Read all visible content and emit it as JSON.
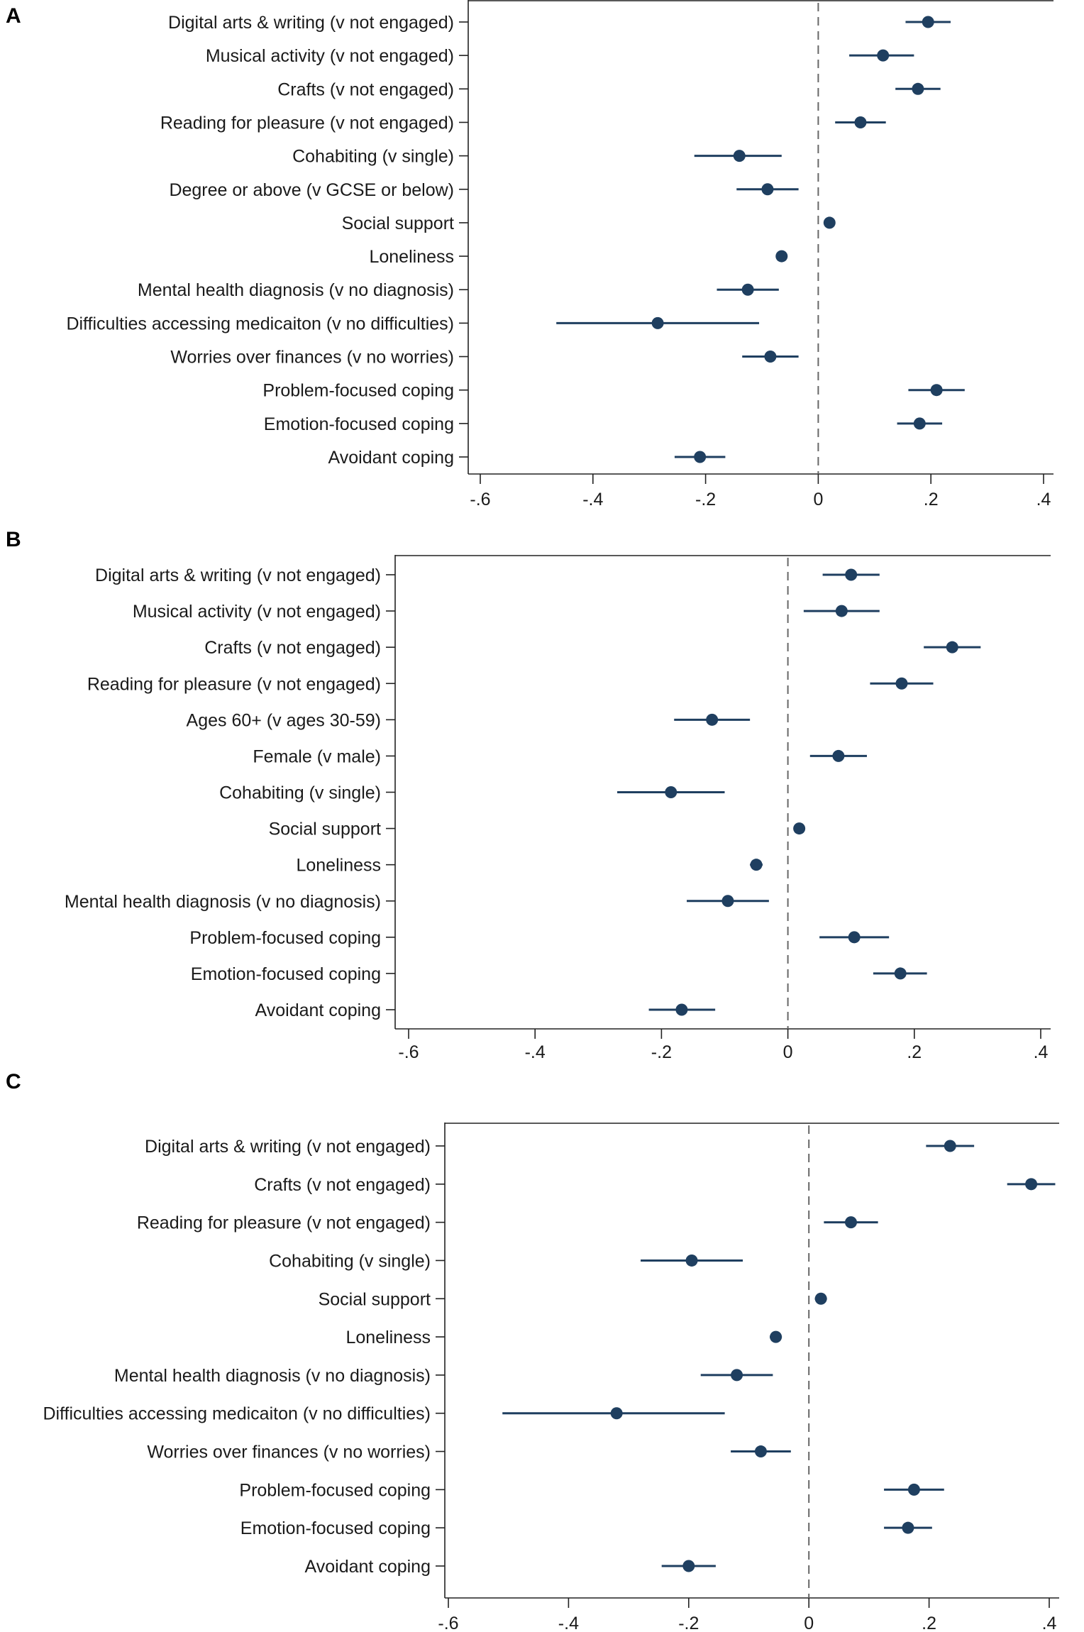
{
  "colors": {
    "marker": "#1f3f60",
    "axis": "#222222",
    "zero_line": "#666666"
  },
  "chart_data": [
    {
      "type": "scatter",
      "panel": "A",
      "xticks": [
        -0.6,
        -0.4,
        -0.2,
        0,
        0.2,
        0.4
      ],
      "xtick_labels": [
        "-.6",
        "-.4",
        "-.2",
        "0",
        ".2",
        ".4"
      ],
      "xlim": [
        -0.6,
        0.4
      ],
      "reference_line": 0,
      "categories": [
        "Digital arts & writing (v not engaged)",
        "Musical activity (v not engaged)",
        "Crafts (v not engaged)",
        "Reading for pleasure (v not engaged)",
        "Cohabiting (v single)",
        "Degree or above (v GCSE or below)",
        "Social support",
        "Loneliness",
        "Mental health diagnosis (v no diagnosis)",
        "Difficulties accessing medicaiton (v no difficulties)",
        "Worries over finances (v no worries)",
        "Problem-focused coping",
        "Emotion-focused coping",
        "Avoidant coping"
      ],
      "estimates": [
        0.195,
        0.115,
        0.177,
        0.075,
        -0.14,
        -0.09,
        0.02,
        -0.065,
        -0.125,
        -0.285,
        -0.085,
        0.21,
        0.18,
        -0.21
      ],
      "ci_low": [
        0.155,
        0.055,
        0.137,
        0.03,
        -0.22,
        -0.145,
        0.01,
        -0.075,
        -0.18,
        -0.465,
        -0.135,
        0.16,
        0.14,
        -0.255
      ],
      "ci_high": [
        0.235,
        0.17,
        0.217,
        0.12,
        -0.065,
        -0.035,
        0.03,
        -0.055,
        -0.07,
        -0.105,
        -0.035,
        0.26,
        0.22,
        -0.165
      ]
    },
    {
      "type": "scatter",
      "panel": "B",
      "xticks": [
        -0.6,
        -0.4,
        -0.2,
        0,
        0.2,
        0.4
      ],
      "xtick_labels": [
        "-.6",
        "-.4",
        "-.2",
        "0",
        ".2",
        ".4"
      ],
      "xlim": [
        -0.6,
        0.4
      ],
      "reference_line": 0,
      "categories": [
        "Digital arts & writing (v not engaged)",
        "Musical activity (v not engaged)",
        "Crafts (v not engaged)",
        "Reading for pleasure (v not engaged)",
        "Ages 60+ (v ages 30-59)",
        "Female (v male)",
        "Cohabiting (v single)",
        "Social support",
        "Loneliness",
        "Mental health diagnosis (v no diagnosis)",
        "Problem-focused coping",
        "Emotion-focused coping",
        "Avoidant coping"
      ],
      "estimates": [
        0.1,
        0.085,
        0.26,
        0.18,
        -0.12,
        0.08,
        -0.185,
        0.018,
        -0.05,
        -0.095,
        0.105,
        0.178,
        -0.168
      ],
      "ci_low": [
        0.055,
        0.025,
        0.215,
        0.13,
        -0.18,
        0.035,
        -0.27,
        0.01,
        -0.06,
        -0.16,
        0.05,
        0.135,
        -0.22
      ],
      "ci_high": [
        0.145,
        0.145,
        0.305,
        0.23,
        -0.06,
        0.125,
        -0.1,
        0.026,
        -0.04,
        -0.03,
        0.16,
        0.22,
        -0.115
      ]
    },
    {
      "type": "scatter",
      "panel": "C",
      "xticks": [
        -0.6,
        -0.4,
        -0.2,
        0,
        0.2,
        0.4
      ],
      "xtick_labels": [
        "-.6",
        "-.4",
        "-.2",
        "0",
        ".2",
        ".4"
      ],
      "xlim": [
        -0.6,
        0.4
      ],
      "reference_line": 0,
      "categories": [
        "Digital arts & writing (v not engaged)",
        "Crafts (v not engaged)",
        "Reading for pleasure (v not engaged)",
        "Cohabiting (v single)",
        "Social support",
        "Loneliness",
        "Mental health diagnosis (v no diagnosis)",
        "Difficulties accessing medicaiton (v no difficulties)",
        "Worries over finances (v no worries)",
        "Problem-focused coping",
        "Emotion-focused coping",
        "Avoidant coping"
      ],
      "estimates": [
        0.235,
        0.37,
        0.07,
        -0.195,
        0.02,
        -0.055,
        -0.12,
        -0.32,
        -0.08,
        0.175,
        0.165,
        -0.2
      ],
      "ci_low": [
        0.195,
        0.33,
        0.025,
        -0.28,
        0.01,
        -0.065,
        -0.18,
        -0.51,
        -0.13,
        0.125,
        0.125,
        -0.245
      ],
      "ci_high": [
        0.275,
        0.41,
        0.115,
        -0.11,
        0.03,
        -0.045,
        -0.06,
        -0.14,
        -0.03,
        0.225,
        0.205,
        -0.155
      ]
    }
  ]
}
